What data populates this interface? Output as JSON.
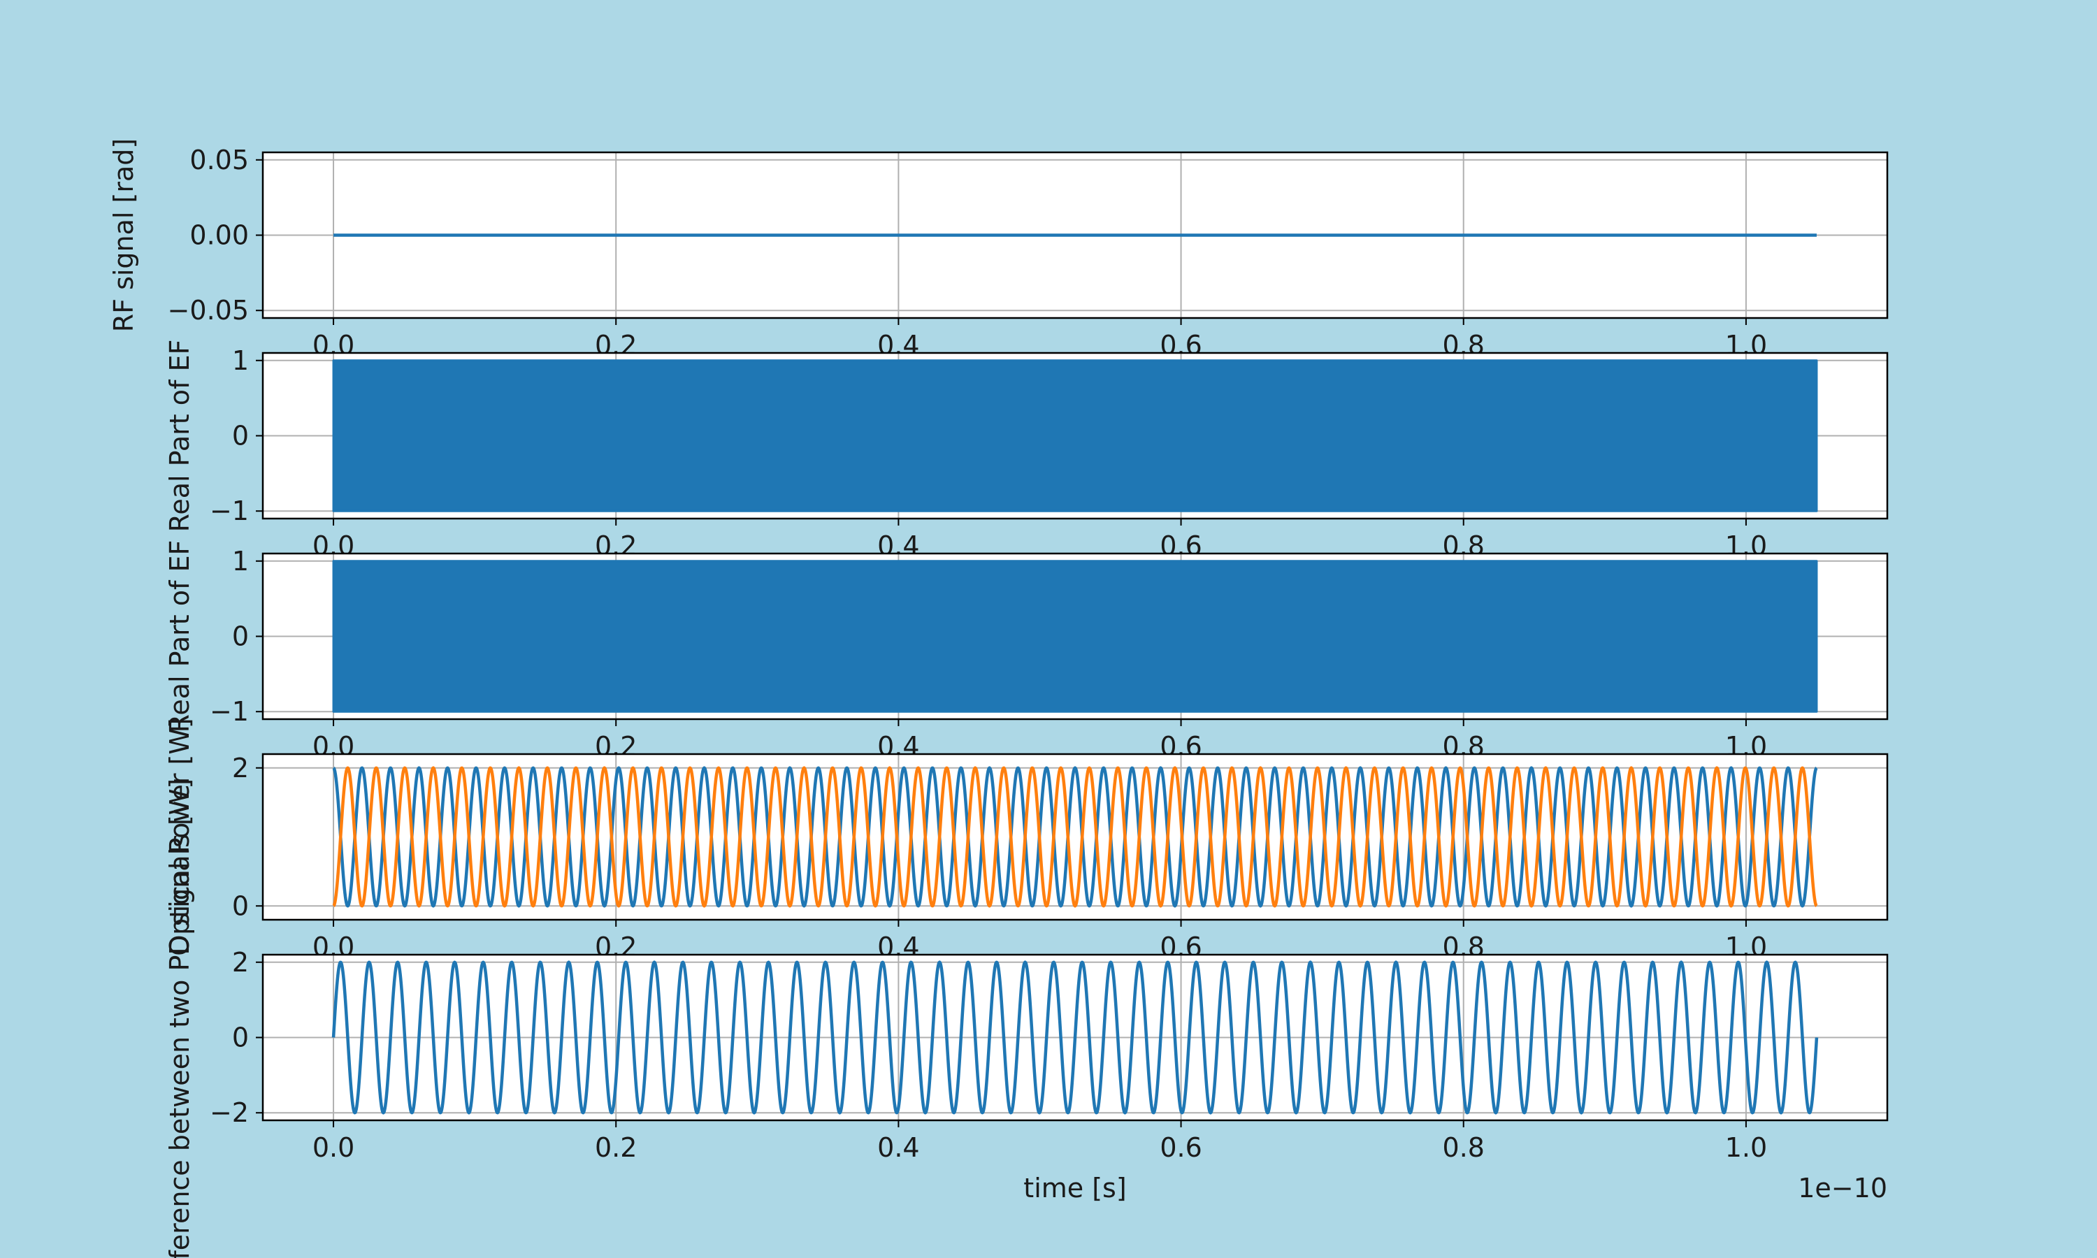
{
  "figure": {
    "background": "#add8e6"
  },
  "chart_data": [
    {
      "type": "line",
      "ylabel": "RF signal [rad]",
      "xlim": [
        -0.05,
        1.1
      ],
      "ylim": [
        -0.055,
        0.055
      ],
      "xticks": [
        0.0,
        0.2,
        0.4,
        0.6,
        0.8,
        1.0
      ],
      "xtick_labels": [
        "0.0",
        "0.2",
        "0.4",
        "0.6",
        "0.8",
        "1.0"
      ],
      "yticks": [
        0.05,
        0.0,
        -0.05
      ],
      "ytick_labels": [
        "0.05",
        "0.00",
        "−0.05"
      ],
      "grid": true,
      "series": [
        {
          "color": "#1f77b4",
          "function": "const",
          "value": 0.0,
          "x_range": [
            0.0,
            1.05
          ]
        }
      ]
    },
    {
      "type": "line",
      "ylabel": "Real Part of EF",
      "xlim": [
        -0.05,
        1.1
      ],
      "ylim": [
        -1.1,
        1.1
      ],
      "xticks": [
        0.0,
        0.2,
        0.4,
        0.6,
        0.8,
        1.0
      ],
      "xtick_labels": [
        "0.0",
        "0.2",
        "0.4",
        "0.6",
        "0.8",
        "1.0"
      ],
      "yticks": [
        1,
        0,
        -1
      ],
      "ytick_labels": [
        "1",
        "0",
        "−1"
      ],
      "grid": true,
      "series": [
        {
          "color": "#1f77b4",
          "function": "dense_band",
          "amplitude": 1,
          "x_range": [
            0.0,
            1.05
          ]
        }
      ]
    },
    {
      "type": "line",
      "ylabel": "Real Part of EF",
      "xlim": [
        -0.05,
        1.1
      ],
      "ylim": [
        -1.1,
        1.1
      ],
      "xticks": [
        0.0,
        0.2,
        0.4,
        0.6,
        0.8,
        1.0
      ],
      "xtick_labels": [
        "0.0",
        "0.2",
        "0.4",
        "0.6",
        "0.8",
        "1.0"
      ],
      "yticks": [
        1,
        0,
        -1
      ],
      "ytick_labels": [
        "1",
        "0",
        "−1"
      ],
      "grid": true,
      "series": [
        {
          "color": "#1f77b4",
          "function": "dense_band",
          "amplitude": 1,
          "x_range": [
            0.0,
            1.05
          ]
        }
      ]
    },
    {
      "type": "line",
      "ylabel": "Optical Power [W]",
      "xlim": [
        -0.05,
        1.1
      ],
      "ylim": [
        -0.2,
        2.2
      ],
      "xticks": [
        0.0,
        0.2,
        0.4,
        0.6,
        0.8,
        1.0
      ],
      "xtick_labels": [
        "0.0",
        "0.2",
        "0.4",
        "0.6",
        "0.8",
        "1.0"
      ],
      "yticks": [
        2,
        0
      ],
      "ytick_labels": [
        "2",
        "0"
      ],
      "grid": true,
      "series": [
        {
          "color": "#1f77b4",
          "function": "cos_power",
          "offset": 1,
          "amplitude": 1,
          "sign": 1,
          "cycles": 52,
          "x_range": [
            0.0,
            1.05
          ]
        },
        {
          "color": "#ff7f0e",
          "function": "cos_power",
          "offset": 1,
          "amplitude": 1,
          "sign": -1,
          "cycles": 52,
          "x_range": [
            0.0,
            1.05
          ]
        }
      ]
    },
    {
      "type": "line",
      "ylabel": "Difference between two PD signals [W]",
      "xlabel": "time [s]",
      "offset_text": "1e−10",
      "xlim": [
        -0.05,
        1.1
      ],
      "ylim": [
        -2.2,
        2.2
      ],
      "xticks": [
        0.0,
        0.2,
        0.4,
        0.6,
        0.8,
        1.0
      ],
      "xtick_labels": [
        "0.0",
        "0.2",
        "0.4",
        "0.6",
        "0.8",
        "1.0"
      ],
      "yticks": [
        2,
        0,
        -2
      ],
      "ytick_labels": [
        "2",
        "0",
        "−2"
      ],
      "grid": true,
      "series": [
        {
          "color": "#1f77b4",
          "function": "sin",
          "amplitude": 2,
          "cycles": 52,
          "x_range": [
            0.0,
            1.05
          ]
        }
      ]
    }
  ]
}
